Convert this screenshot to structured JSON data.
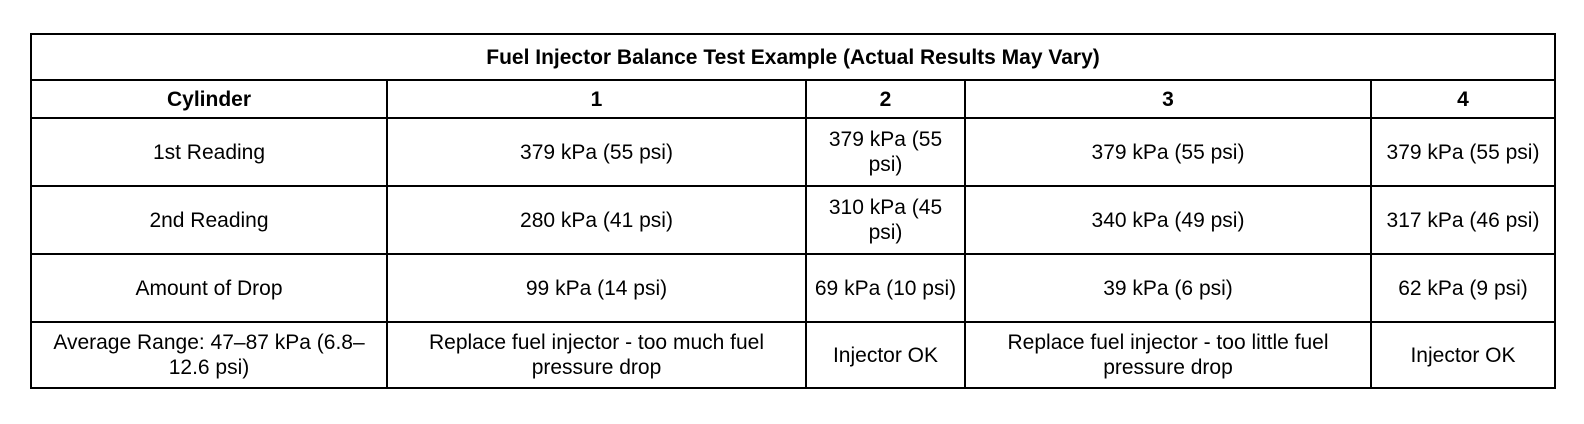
{
  "table": {
    "title": "Fuel Injector Balance Test Example (Actual Results May Vary)",
    "columns": [
      "Cylinder",
      "1",
      "2",
      "3",
      "4"
    ],
    "rows": [
      {
        "label": "1st Reading",
        "cells": [
          "379 kPa (55 psi)",
          "379 kPa (55 psi)",
          "379 kPa (55 psi)",
          "379 kPa (55 psi)"
        ]
      },
      {
        "label": "2nd Reading",
        "cells": [
          "280 kPa (41 psi)",
          "310 kPa (45 psi)",
          "340 kPa (49 psi)",
          "317 kPa (46 psi)"
        ]
      },
      {
        "label": "Amount of Drop",
        "cells": [
          "99 kPa (14 psi)",
          "69 kPa (10 psi)",
          "39 kPa (6 psi)",
          "62 kPa (9 psi)"
        ]
      },
      {
        "label": "Average Range: 47–87 kPa (6.8–12.6 psi)",
        "cells": [
          "Replace fuel injector - too much fuel pressure drop",
          "Injector OK",
          "Replace fuel injector - too little fuel pressure drop",
          "Injector OK"
        ]
      }
    ]
  }
}
